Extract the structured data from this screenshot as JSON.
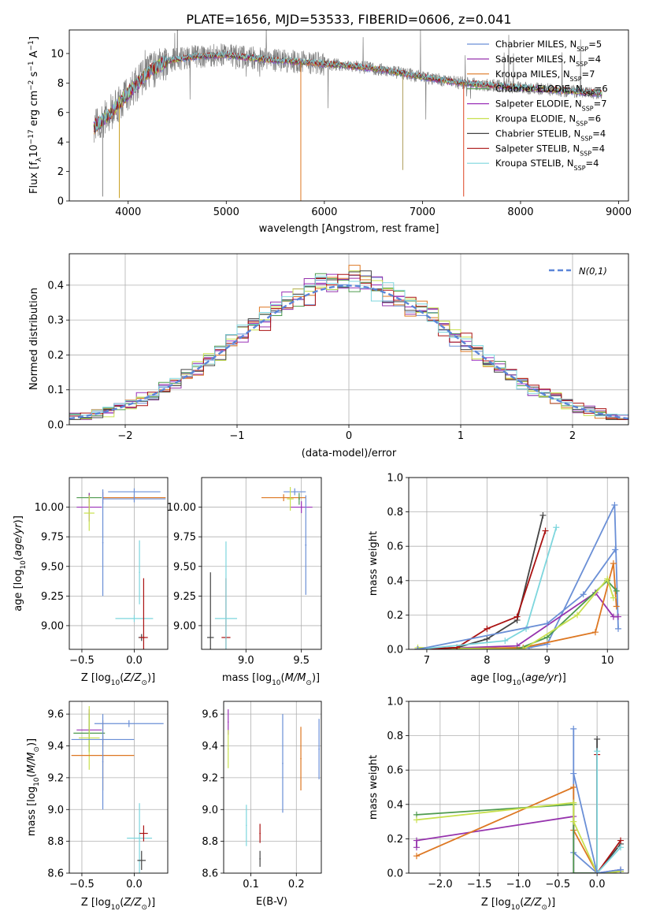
{
  "figure": {
    "title": "PLATE=1656, MJD=53533, FIBERID=0606, z=0.041"
  },
  "series": [
    {
      "name": "Chabrier MILES, N",
      "sub": "SSP",
      "tail": "=5",
      "color": "#6a8fd6"
    },
    {
      "name": "Salpeter MILES, N",
      "sub": "SSP",
      "tail": "=4",
      "color": "#9633ad"
    },
    {
      "name": "Kroupa MILES, N",
      "sub": "SSP",
      "tail": "=7",
      "color": "#dd7722"
    },
    {
      "name": "Chabrier ELODIE, N",
      "sub": "SSP",
      "tail": "=6",
      "color": "#4e9a4e"
    },
    {
      "name": "Salpeter ELODIE, N",
      "sub": "SSP",
      "tail": "=7",
      "color": "#9a30b8"
    },
    {
      "name": "Kroupa ELODIE, N",
      "sub": "SSP",
      "tail": "=6",
      "color": "#c8e04e"
    },
    {
      "name": "Chabrier STELIB, N",
      "sub": "SSP",
      "tail": "=4",
      "color": "#444444"
    },
    {
      "name": "Salpeter STELIB, N",
      "sub": "SSP",
      "tail": "=4",
      "color": "#aa1111"
    },
    {
      "name": "Kroupa STELIB, N",
      "sub": "SSP",
      "tail": "=4",
      "color": "#7dd6dd"
    }
  ],
  "chart_data": [
    {
      "id": "spectrum",
      "type": "line",
      "xlabel": "wavelength [Angstrom, rest frame]",
      "ylabel": "Flux [f_λ 10^-17 erg cm^-2 s^-1 A^-1]",
      "xlim": [
        3400,
        9100
      ],
      "ylim": [
        0,
        11.6
      ],
      "xticks": [
        4000,
        5000,
        6000,
        7000,
        8000,
        9000
      ],
      "yticks": [
        0,
        2,
        4,
        6,
        8,
        10
      ],
      "data_range": [
        3650,
        8830
      ],
      "envelope": [
        [
          3650,
          5.0
        ],
        [
          3800,
          5.8
        ],
        [
          4000,
          7.3
        ],
        [
          4200,
          8.7
        ],
        [
          4400,
          9.5
        ],
        [
          4700,
          9.8
        ],
        [
          5000,
          9.9
        ],
        [
          5400,
          9.6
        ],
        [
          5800,
          9.4
        ],
        [
          6200,
          9.2
        ],
        [
          6600,
          8.9
        ],
        [
          7000,
          8.4
        ],
        [
          7400,
          8.0
        ],
        [
          7800,
          7.8
        ],
        [
          8200,
          7.6
        ],
        [
          8600,
          7.4
        ],
        [
          8830,
          7.3
        ]
      ],
      "spikes": [
        [
          3740,
          0.3
        ],
        [
          3910,
          0.2
        ],
        [
          5760,
          0.0
        ],
        [
          6800,
          2.1
        ],
        [
          7420,
          0.3
        ]
      ]
    },
    {
      "id": "residuals",
      "type": "step",
      "xlabel": "(data-model)/error",
      "ylabel": "Normed distribution",
      "xlim": [
        -2.5,
        2.5
      ],
      "ylim": [
        0,
        0.49
      ],
      "xticks": [
        -2,
        -1,
        0,
        1,
        2
      ],
      "yticks": [
        0.0,
        0.1,
        0.2,
        0.3,
        0.4
      ],
      "reference": {
        "name": "N(0,1)",
        "color": "#5b85d8"
      }
    },
    {
      "id": "age_vs_Z",
      "type": "errorbar",
      "xlabel": "Z [log10(Z/Z⊙)]",
      "ylabel": "age [log10(age/yr)]",
      "xlim": [
        -0.62,
        0.32
      ],
      "ylim": [
        8.8,
        10.25
      ],
      "xticks": [
        -0.5,
        0.0
      ],
      "yticks": [
        9.0,
        9.25,
        9.5,
        9.75,
        10.0
      ],
      "points": [
        {
          "s": 0,
          "x": 0.0,
          "y": 10.13,
          "xe": 0.25,
          "ye": 0.0
        },
        {
          "s": 2,
          "x": 0.0,
          "y": 10.08,
          "xe": 0.3,
          "ye": 0.02
        },
        {
          "s": 3,
          "x": -0.43,
          "y": 10.08,
          "xe": 0.12,
          "ye": 0.04
        },
        {
          "s": 4,
          "x": -0.43,
          "y": 10.0,
          "xe": 0.12,
          "ye": 0.12
        },
        {
          "s": 5,
          "x": -0.43,
          "y": 9.95,
          "xe": 0.05,
          "ye": 0.15
        },
        {
          "s": 8,
          "x": 0.0,
          "y": 9.06,
          "xe": 0.18,
          "ye": 0.0
        },
        {
          "s": 8,
          "x": 0.05,
          "y": 9.45,
          "xe": 0.0,
          "ye": 0.27
        },
        {
          "s": 6,
          "x": 0.07,
          "y": 8.9,
          "xe": 0.03,
          "ye": 0.0
        },
        {
          "s": 7,
          "x": 0.09,
          "y": 8.9,
          "xe": 0.04,
          "ye": 0.5
        },
        {
          "s": 1,
          "x": -0.3,
          "y": 10.08,
          "xe": 0.0,
          "ye": 0.05
        },
        {
          "s": 9,
          "x": -0.3,
          "y": 9.7,
          "xe": 0.0,
          "ye": 0.45
        },
        {
          "s": 9,
          "x": 0.0,
          "y": 10.07,
          "xe": 0.3,
          "ye": 0.0
        }
      ]
    },
    {
      "id": "age_vs_mass",
      "type": "errorbar",
      "xlabel": "mass [log10(M/M⊙)]",
      "ylabel": "",
      "xlim": [
        8.6,
        9.68
      ],
      "ylim": [
        8.8,
        10.25
      ],
      "xticks": [
        9.0,
        9.5
      ],
      "yticks": [
        9.0,
        9.25,
        9.5,
        9.75,
        10.0
      ],
      "points": [
        {
          "s": 6,
          "x": 8.68,
          "y": 8.9,
          "xe": 0.03,
          "ye": 0.55
        },
        {
          "s": 7,
          "x": 8.82,
          "y": 8.9,
          "xe": 0.04,
          "ye": 0.5
        },
        {
          "s": 8,
          "x": 8.82,
          "y": 9.06,
          "xe": 0.1,
          "ye": 0.65
        },
        {
          "s": 0,
          "x": 9.44,
          "y": 10.13,
          "xe": 0.1,
          "ye": 0.0
        },
        {
          "s": 2,
          "x": 9.34,
          "y": 10.08,
          "xe": 0.2,
          "ye": 0.0
        },
        {
          "s": 4,
          "x": 9.5,
          "y": 10.0,
          "xe": 0.1,
          "ye": 0.05
        },
        {
          "s": 3,
          "x": 9.48,
          "y": 10.07,
          "xe": 0.0,
          "ye": 0.05
        },
        {
          "s": 9,
          "x": 9.54,
          "y": 9.68,
          "xe": 0.0,
          "ye": 0.42
        },
        {
          "s": 5,
          "x": 9.4,
          "y": 10.07,
          "xe": 0.03,
          "ye": 0.1
        }
      ]
    },
    {
      "id": "mass_weight_vs_age",
      "type": "line",
      "xlabel": "age [log10(age/yr)]",
      "ylabel": "mass weight",
      "xlim": [
        6.7,
        10.35
      ],
      "ylim": [
        0,
        1.0
      ],
      "xticks": [
        7,
        8,
        9,
        10
      ],
      "yticks": [
        0.0,
        0.2,
        0.4,
        0.6,
        0.8,
        1.0
      ],
      "lines": [
        {
          "s": 0,
          "pts": [
            [
              6.85,
              0.0
            ],
            [
              8.7,
              0.01
            ],
            [
              9.0,
              0.03
            ],
            [
              10.12,
              0.84
            ],
            [
              10.18,
              0.12
            ]
          ]
        },
        {
          "s": 1,
          "pts": [
            [
              6.85,
              0.0
            ],
            [
              8.5,
              0.02
            ],
            [
              9.8,
              0.33
            ],
            [
              10.1,
              0.19
            ],
            [
              10.18,
              0.19
            ]
          ]
        },
        {
          "s": 2,
          "pts": [
            [
              6.85,
              0.0
            ],
            [
              8.6,
              0.01
            ],
            [
              9.8,
              0.1
            ],
            [
              10.1,
              0.5
            ],
            [
              10.15,
              0.25
            ]
          ]
        },
        {
          "s": 3,
          "pts": [
            [
              6.85,
              0.0
            ],
            [
              8.5,
              0.0
            ],
            [
              9.0,
              0.07
            ],
            [
              10.0,
              0.4
            ],
            [
              10.15,
              0.34
            ]
          ]
        },
        {
          "s": 5,
          "pts": [
            [
              6.85,
              0.01
            ],
            [
              8.6,
              0.0
            ],
            [
              9.5,
              0.2
            ],
            [
              10.0,
              0.41
            ],
            [
              10.1,
              0.3
            ]
          ]
        },
        {
          "s": 6,
          "pts": [
            [
              6.85,
              0.0
            ],
            [
              7.5,
              0.01
            ],
            [
              8.0,
              0.06
            ],
            [
              8.5,
              0.17
            ],
            [
              8.93,
              0.78
            ]
          ]
        },
        {
          "s": 7,
          "pts": [
            [
              6.85,
              0.0
            ],
            [
              7.5,
              0.01
            ],
            [
              8.0,
              0.12
            ],
            [
              8.5,
              0.19
            ],
            [
              8.97,
              0.69
            ]
          ]
        },
        {
          "s": 8,
          "pts": [
            [
              6.85,
              0.0
            ],
            [
              8.3,
              0.05
            ],
            [
              8.65,
              0.12
            ],
            [
              9.15,
              0.71
            ]
          ]
        },
        {
          "s": 9,
          "pts": [
            [
              6.85,
              0.0
            ],
            [
              9.0,
              0.15
            ],
            [
              9.6,
              0.32
            ],
            [
              10.13,
              0.58
            ]
          ]
        }
      ]
    },
    {
      "id": "mass_vs_Z",
      "type": "errorbar",
      "xlabel": "Z [log10(Z/Z⊙)]",
      "ylabel": "mass [log10(M/M⊙)]",
      "xlim": [
        -0.62,
        0.32
      ],
      "ylim": [
        8.6,
        9.68
      ],
      "xticks": [
        -0.5,
        0.0
      ],
      "yticks": [
        8.6,
        8.8,
        9.0,
        9.2,
        9.4,
        9.6
      ],
      "points": [
        {
          "s": 9,
          "x": -0.05,
          "y": 9.54,
          "xe": 0.33,
          "ye": 0.0
        },
        {
          "s": 4,
          "x": -0.43,
          "y": 9.5,
          "xe": 0.12,
          "ye": 0.13
        },
        {
          "s": 3,
          "x": -0.43,
          "y": 9.48,
          "xe": 0.15,
          "ye": 0.12
        },
        {
          "s": 5,
          "x": -0.43,
          "y": 9.45,
          "xe": 0.1,
          "ye": 0.2
        },
        {
          "s": 0,
          "x": -0.3,
          "y": 9.44,
          "xe": 0.3,
          "ye": 0.0
        },
        {
          "s": 2,
          "x": -0.3,
          "y": 9.34,
          "xe": 0.3,
          "ye": 0.22
        },
        {
          "s": 9,
          "x": -0.3,
          "y": 9.3,
          "xe": 0.0,
          "ye": 0.3
        },
        {
          "s": 8,
          "x": 0.05,
          "y": 8.82,
          "xe": 0.12,
          "ye": 0.22
        },
        {
          "s": 7,
          "x": 0.09,
          "y": 8.85,
          "xe": 0.04,
          "ye": 0.05
        },
        {
          "s": 6,
          "x": 0.07,
          "y": 8.68,
          "xe": 0.04,
          "ye": 0.06
        }
      ]
    },
    {
      "id": "mass_vs_EBV",
      "type": "errorbar",
      "xlabel": "E(B-V)",
      "ylabel": "",
      "xlim": [
        0.04,
        0.255
      ],
      "ylim": [
        8.6,
        9.68
      ],
      "xticks": [
        0.1,
        0.2
      ],
      "yticks": [
        8.6,
        8.8,
        9.0,
        9.2,
        9.4,
        9.6
      ],
      "points": [
        {
          "s": 4,
          "x": 0.05,
          "y": 9.55,
          "xe": 0.0,
          "ye": 0.08
        },
        {
          "s": 5,
          "x": 0.05,
          "y": 9.38,
          "xe": 0.0,
          "ye": 0.12
        },
        {
          "s": 8,
          "x": 0.09,
          "y": 8.9,
          "xe": 0.0,
          "ye": 0.13
        },
        {
          "s": 7,
          "x": 0.12,
          "y": 8.85,
          "xe": 0.0,
          "ye": 0.06
        },
        {
          "s": 6,
          "x": 0.12,
          "y": 8.69,
          "xe": 0.0,
          "ye": 0.05
        },
        {
          "s": 9,
          "x": 0.17,
          "y": 9.29,
          "xe": 0.0,
          "ye": 0.31
        },
        {
          "s": 2,
          "x": 0.21,
          "y": 9.32,
          "xe": 0.0,
          "ye": 0.2
        },
        {
          "s": 0,
          "x": 0.25,
          "y": 9.38,
          "xe": 0.0,
          "ye": 0.19
        }
      ]
    },
    {
      "id": "mass_weight_vs_Z",
      "type": "line",
      "xlabel": "Z [log10(Z/Z⊙)]",
      "ylabel": "mass weight",
      "xlim": [
        -2.4,
        0.4
      ],
      "ylim": [
        0,
        1.0
      ],
      "xticks": [
        -2.0,
        -1.5,
        -1.0,
        -0.5,
        0.0
      ],
      "yticks": [
        0.0,
        0.2,
        0.4,
        0.6,
        0.8,
        1.0
      ],
      "lines": [
        {
          "s": 0,
          "pts": [
            [
              -0.3,
              0.84
            ],
            [
              -0.3,
              0.12
            ],
            [
              0.0,
              0.0
            ],
            [
              0.3,
              0.01
            ]
          ]
        },
        {
          "s": 1,
          "pts": [
            [
              -2.3,
              0.15
            ],
            [
              -2.3,
              0.19
            ],
            [
              -0.3,
              0.33
            ],
            [
              -0.3,
              0.0
            ],
            [
              0.0,
              0.0
            ],
            [
              0.3,
              0.02
            ]
          ]
        },
        {
          "s": 2,
          "pts": [
            [
              -2.3,
              0.1
            ],
            [
              -0.3,
              0.5
            ],
            [
              -0.3,
              0.25
            ],
            [
              0.0,
              0.0
            ],
            [
              0.3,
              0.01
            ]
          ]
        },
        {
          "s": 3,
          "pts": [
            [
              -2.3,
              0.34
            ],
            [
              -0.3,
              0.4
            ],
            [
              -0.3,
              0.0
            ],
            [
              0.0,
              0.0
            ],
            [
              0.3,
              0.01
            ]
          ]
        },
        {
          "s": 5,
          "pts": [
            [
              -2.3,
              0.31
            ],
            [
              -0.3,
              0.41
            ],
            [
              -0.3,
              0.3
            ],
            [
              0.0,
              0.0
            ],
            [
              0.3,
              0.01
            ]
          ]
        },
        {
          "s": 6,
          "pts": [
            [
              0.0,
              0.78
            ],
            [
              0.0,
              0.0
            ],
            [
              0.3,
              0.17
            ]
          ]
        },
        {
          "s": 7,
          "pts": [
            [
              0.0,
              0.69
            ],
            [
              0.0,
              0.0
            ],
            [
              0.3,
              0.19
            ]
          ]
        },
        {
          "s": 8,
          "pts": [
            [
              0.0,
              0.71
            ],
            [
              0.0,
              0.0
            ],
            [
              0.3,
              0.15
            ]
          ]
        },
        {
          "s": 9,
          "pts": [
            [
              -0.3,
              0.58
            ],
            [
              0.0,
              0.0
            ],
            [
              0.3,
              0.02
            ]
          ]
        }
      ]
    }
  ]
}
